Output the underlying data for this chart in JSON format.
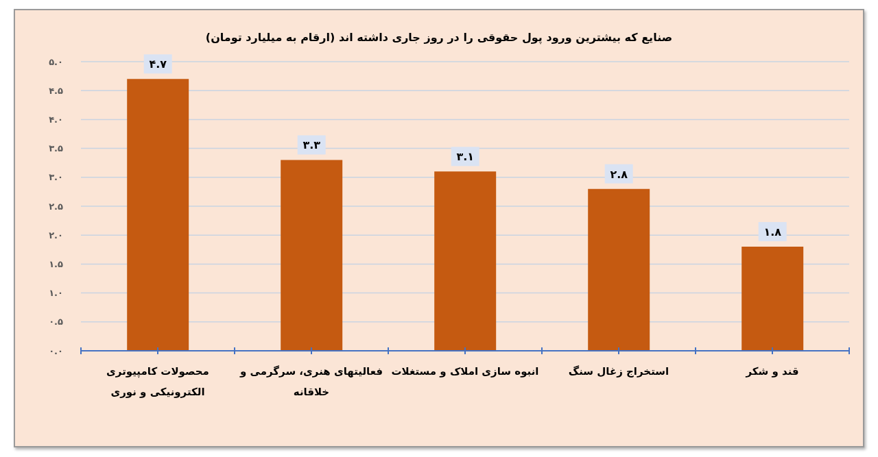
{
  "chart_data": {
    "type": "bar",
    "title": "صنایع که بیشترین ورود پول حقوقی را در روز جاری داشته اند (ارقام به میلیارد تومان)",
    "categories": [
      "محصولات کامپیوتری الکترونیکی و نوری",
      "فعالیتهای هنری، سرگرمی و خلاقانه",
      "انبوه سازی املاک و مستغلات",
      "استخراج زغال سنگ",
      "قند و شکر"
    ],
    "values": [
      4.7,
      3.3,
      3.1,
      2.8,
      1.8
    ],
    "color": "#c55a11",
    "value_labels": [
      "۴.۷",
      "۳.۳",
      "۳.۱",
      "۲.۸",
      "۱.۸"
    ],
    "ylim": [
      0,
      5
    ],
    "yticks": [
      {
        "value": 0,
        "label": "۰.۰"
      },
      {
        "value": 0.5,
        "label": "۰.۵"
      },
      {
        "value": 1,
        "label": "۱.۰"
      },
      {
        "value": 1.5,
        "label": "۱.۵"
      },
      {
        "value": 2,
        "label": "۲.۰"
      },
      {
        "value": 2.5,
        "label": "۲.۵"
      },
      {
        "value": 3,
        "label": "۳.۰"
      },
      {
        "value": 3.5,
        "label": "۳.۵"
      },
      {
        "value": 4,
        "label": "۴.۰"
      },
      {
        "value": 4.5,
        "label": "۴.۵"
      },
      {
        "value": 5,
        "label": "۵.۰"
      }
    ],
    "grid": "y"
  }
}
